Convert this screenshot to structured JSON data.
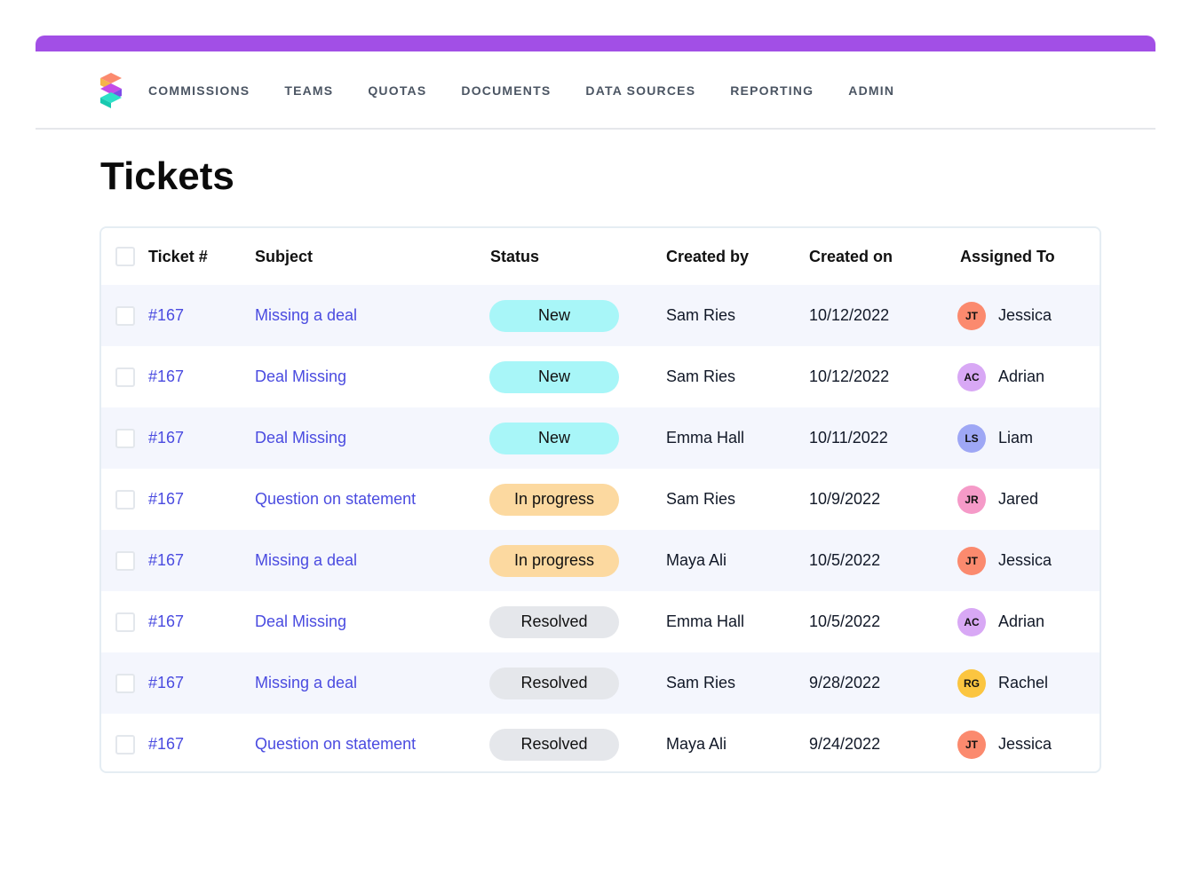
{
  "brand": {
    "accent": "#a24fe6",
    "logo": "spiff-logo-icon"
  },
  "nav": {
    "items": [
      "COMMISSIONS",
      "TEAMS",
      "QUOTAS",
      "DOCUMENTS",
      "DATA SOURCES",
      "REPORTING",
      "ADMIN"
    ]
  },
  "page": {
    "title": "Tickets"
  },
  "table": {
    "headers": {
      "ticket": "Ticket #",
      "subject": "Subject",
      "status": "Status",
      "created_by": "Created by",
      "created_on": "Created on",
      "assigned_to": "Assigned To"
    },
    "rows": [
      {
        "ticket": "#167",
        "subject": "Missing a deal",
        "status": "New",
        "status_kind": "new",
        "created_by": "Sam Ries",
        "created_on": "10/12/2022",
        "initials": "JT",
        "avatar_color": "#fb8a6e",
        "assignee": "Jessica"
      },
      {
        "ticket": "#167",
        "subject": "Deal Missing",
        "status": "New",
        "status_kind": "new",
        "created_by": "Sam Ries",
        "created_on": "10/12/2022",
        "initials": "AC",
        "avatar_color": "#d8a8f5",
        "assignee": "Adrian"
      },
      {
        "ticket": "#167",
        "subject": "Deal Missing",
        "status": "New",
        "status_kind": "new",
        "created_by": "Emma Hall",
        "created_on": "10/11/2022",
        "initials": "LS",
        "avatar_color": "#9ea7f5",
        "assignee": "Liam"
      },
      {
        "ticket": "#167",
        "subject": "Question on statement",
        "status": "In progress",
        "status_kind": "progress",
        "created_by": "Sam Ries",
        "created_on": "10/9/2022",
        "initials": "JR",
        "avatar_color": "#f59ac8",
        "assignee": "Jared"
      },
      {
        "ticket": "#167",
        "subject": "Missing a deal",
        "status": "In progress",
        "status_kind": "progress",
        "created_by": "Maya Ali",
        "created_on": "10/5/2022",
        "initials": "JT",
        "avatar_color": "#fb8a6e",
        "assignee": "Jessica"
      },
      {
        "ticket": "#167",
        "subject": "Deal Missing",
        "status": "Resolved",
        "status_kind": "resolved",
        "created_by": "Emma Hall",
        "created_on": "10/5/2022",
        "initials": "AC",
        "avatar_color": "#d8a8f5",
        "assignee": "Adrian"
      },
      {
        "ticket": "#167",
        "subject": "Missing a deal",
        "status": "Resolved",
        "status_kind": "resolved",
        "created_by": "Sam Ries",
        "created_on": "9/28/2022",
        "initials": "RG",
        "avatar_color": "#fbc540",
        "assignee": "Rachel"
      },
      {
        "ticket": "#167",
        "subject": "Question on statement",
        "status": "Resolved",
        "status_kind": "resolved",
        "created_by": "Maya Ali",
        "created_on": "9/24/2022",
        "initials": "JT",
        "avatar_color": "#fb8a6e",
        "assignee": "Jessica"
      }
    ]
  }
}
